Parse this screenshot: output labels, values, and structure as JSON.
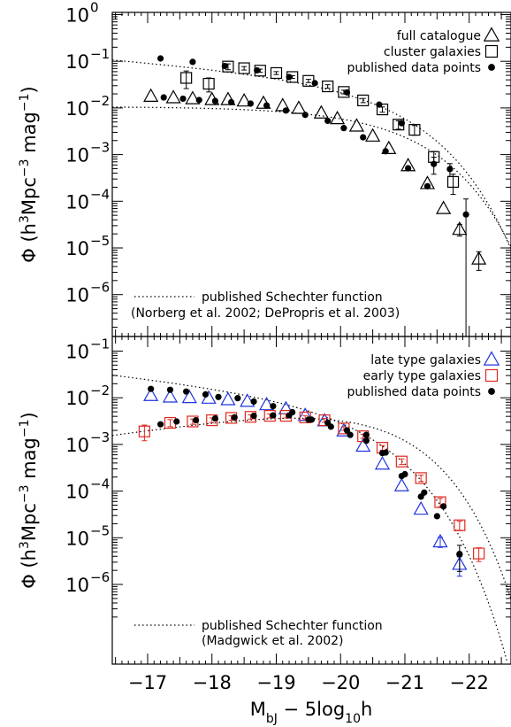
{
  "chart_data": [
    {
      "type": "scatter",
      "panel": "top",
      "xlabel": "M_bJ − 5log10h",
      "ylabel": "Φ (h³Mpc⁻³ mag⁻¹)",
      "xlim": [
        -16.45,
        -22.65
      ],
      "ylim_log10": [
        -7.0,
        0.0
      ],
      "ytick_exponents": [
        0,
        -1,
        -2,
        -3,
        -4,
        -5,
        -6
      ],
      "legend_position": "top-right",
      "legend": [
        {
          "label": "full catalogue",
          "marker": "triangle-open",
          "color": "#000000"
        },
        {
          "label": "cluster galaxies",
          "marker": "square-open",
          "color": "#000000"
        },
        {
          "label": "published data points",
          "marker": "circle-filled",
          "color": "#000000"
        }
      ],
      "note": {
        "line1": "published Schechter function",
        "line2": "(Norberg et al. 2002; DePropris et al. 2003)"
      },
      "series": [
        {
          "name": "full catalogue",
          "marker": "triangle-open",
          "color": "#000000",
          "x": [
            -17.05,
            -17.4,
            -17.7,
            -18.0,
            -18.25,
            -18.5,
            -18.8,
            -19.1,
            -19.35,
            -19.7,
            -19.95,
            -20.25,
            -20.5,
            -20.75,
            -21.05,
            -21.35,
            -21.6,
            -21.85,
            -22.15
          ],
          "y": [
            0.0178,
            0.0166,
            0.0158,
            0.0151,
            0.0151,
            0.0141,
            0.0126,
            0.0112,
            0.0098,
            0.0078,
            0.0059,
            0.0041,
            0.0025,
            0.00135,
            0.00058,
            0.00024,
            7e-05,
            2.5e-05,
            5.8e-06
          ],
          "yerr": [
            0,
            0,
            0,
            0,
            0,
            0,
            0,
            0,
            0,
            0,
            0,
            0,
            0,
            0,
            0,
            0,
            0,
            7e-06,
            2.5e-06
          ]
        },
        {
          "name": "cluster galaxies",
          "marker": "square-open",
          "color": "#000000",
          "x": [
            -17.6,
            -17.95,
            -18.25,
            -18.5,
            -18.75,
            -19.0,
            -19.25,
            -19.5,
            -19.8,
            -20.05,
            -20.35,
            -20.65,
            -20.9,
            -21.15,
            -21.45,
            -21.75
          ],
          "y": [
            0.044,
            0.033,
            0.077,
            0.071,
            0.063,
            0.056,
            0.046,
            0.038,
            0.029,
            0.022,
            0.0145,
            0.0093,
            0.0044,
            0.0034,
            0.00089,
            0.00026
          ],
          "yerr": [
            0.018,
            0.011,
            0.011,
            0.006,
            0.005,
            0.004,
            0.003,
            0.003,
            0.0025,
            0.002,
            0.0015,
            0.0012,
            0.0009,
            0.0008,
            0.00028,
            0.00012
          ]
        },
        {
          "name": "published data points",
          "marker": "circle-filled",
          "color": "#000000",
          "x": [
            -17.2,
            -17.7,
            -18.2,
            -18.7,
            -19.2,
            -19.6,
            -20.1,
            -20.6,
            -20.95,
            -21.45,
            -21.7,
            -21.95,
            -21.35,
            -21.05,
            -20.7,
            -20.35,
            -20.05,
            -19.8,
            -19.45,
            -19.15,
            -18.85,
            -18.6,
            -18.3,
            -18.05,
            -17.8,
            -17.55,
            -17.25
          ],
          "y": [
            0.115,
            0.097,
            0.079,
            0.064,
            0.046,
            0.034,
            0.0215,
            0.0118,
            0.0047,
            0.00063,
            0.00049,
            5.2e-05,
            0.00021,
            0.00051,
            0.00118,
            0.00235,
            0.0037,
            0.0053,
            0.0071,
            0.0088,
            0.0113,
            0.0124,
            0.0133,
            0.0141,
            0.0148,
            0.0158,
            0.0168
          ],
          "yerr": [
            0,
            0,
            0,
            0,
            0,
            0,
            0,
            0,
            0,
            0.00025,
            0.00015,
            6e-05,
            0,
            0,
            0,
            0,
            0,
            0,
            0,
            0,
            0,
            0,
            0,
            0,
            0,
            0,
            0
          ]
        }
      ],
      "schechter": [
        {
          "phi_star": 0.0395,
          "m_star": -20.44,
          "alpha": -1.3
        },
        {
          "phi_star": 0.0116,
          "m_star": -20.55,
          "alpha": -1.0
        }
      ]
    },
    {
      "type": "scatter",
      "panel": "bottom",
      "xlabel": "M_bJ − 5log10h",
      "ylabel": "Φ (h³Mpc⁻³ mag⁻¹)",
      "xlim": [
        -16.45,
        -22.65
      ],
      "ylim_log10": [
        -7.0,
        -0.8
      ],
      "ytick_exponents": [
        -1,
        -2,
        -3,
        -4,
        -5,
        -6
      ],
      "xticks": [
        -17,
        -18,
        -19,
        -20,
        -21,
        -22
      ],
      "legend_position": "top-right",
      "legend": [
        {
          "label": "late type galaxies",
          "marker": "triangle-open",
          "color": "#1f33e0"
        },
        {
          "label": "early type galaxies",
          "marker": "square-open",
          "color": "#e0281f"
        },
        {
          "label": "published data points",
          "marker": "circle-filled",
          "color": "#000000"
        }
      ],
      "note": {
        "line1": "published Schechter function",
        "line2": "(Madgwick et al. 2002)"
      },
      "series": [
        {
          "name": "late type galaxies",
          "marker": "triangle-open",
          "color": "#1f33e0",
          "x": [
            -17.05,
            -17.35,
            -17.65,
            -17.95,
            -18.25,
            -18.55,
            -18.85,
            -19.15,
            -19.45,
            -19.75,
            -20.05,
            -20.35,
            -20.65,
            -20.95,
            -21.25,
            -21.55,
            -21.85
          ],
          "y": [
            0.0112,
            0.0104,
            0.0101,
            0.0098,
            0.0091,
            0.0084,
            0.0071,
            0.0058,
            0.0042,
            0.0032,
            0.00195,
            0.00092,
            0.00038,
            0.00013,
            4.1e-05,
            8.2e-06,
            2.7e-06
          ],
          "yerr": [
            0,
            0,
            0,
            0,
            0,
            0,
            0,
            0,
            0,
            0,
            0,
            0,
            0,
            0,
            0,
            2e-06,
            1.2e-06
          ]
        },
        {
          "name": "early type galaxies",
          "marker": "square-open",
          "color": "#e0281f",
          "x": [
            -16.95,
            -17.35,
            -17.7,
            -18.0,
            -18.3,
            -18.6,
            -18.9,
            -19.15,
            -19.45,
            -19.75,
            -20.05,
            -20.35,
            -20.65,
            -20.95,
            -21.25,
            -21.55,
            -21.85,
            -22.15
          ],
          "y": [
            0.0019,
            0.0029,
            0.0031,
            0.0033,
            0.0037,
            0.0039,
            0.0041,
            0.0041,
            0.0038,
            0.0033,
            0.0022,
            0.0015,
            0.00085,
            0.00043,
            0.00019,
            5.8e-05,
            1.85e-05,
            4.6e-06
          ],
          "yerr": [
            0.0007,
            0.0005,
            0.0004,
            0.0004,
            0.0004,
            0.0004,
            0.0004,
            0.0004,
            0.0003,
            0.0003,
            0.0002,
            0.00015,
            0.0001,
            6e-05,
            3e-05,
            1.2e-05,
            4e-06,
            1.5e-06
          ]
        },
        {
          "name": "published data points",
          "marker": "circle-filled",
          "color": "#000000",
          "x": [
            -17.05,
            -17.35,
            -17.6,
            -17.9,
            -18.1,
            -18.4,
            -18.65,
            -18.95,
            -19.25,
            -19.55,
            -19.85,
            -20.15,
            -20.4,
            -20.65,
            -20.95,
            -21.25,
            -21.5,
            -21.85,
            -17.2,
            -17.45,
            -17.75,
            -18.05,
            -18.35,
            -18.65,
            -18.95,
            -19.2,
            -19.5,
            -19.8,
            -20.1,
            -20.4,
            -20.7,
            -21.0,
            -21.3,
            -21.6,
            -21.85
          ],
          "y": [
            0.0155,
            0.0148,
            0.0136,
            0.0118,
            0.0104,
            0.0098,
            0.0083,
            0.0066,
            0.0049,
            0.0034,
            0.0024,
            0.0016,
            0.0012,
            0.00065,
            0.00021,
            7.6e-05,
            2.9e-05,
            4.4e-06,
            0.0027,
            0.0031,
            0.0033,
            0.0036,
            0.0038,
            0.0041,
            0.0042,
            0.0042,
            0.0034,
            0.0029,
            0.002,
            0.0016,
            0.00067,
            0.00023,
            9.3e-05,
            4.7e-05,
            4.5e-06
          ],
          "yerr": [
            0,
            0,
            0,
            0,
            0,
            0,
            0,
            0,
            0,
            0,
            0,
            0,
            0,
            0,
            0,
            0,
            0,
            2.5e-06,
            0,
            0,
            0,
            0,
            0,
            0,
            0,
            0,
            0,
            0,
            0,
            0,
            0,
            0,
            0,
            0,
            0
          ]
        }
      ],
      "schechter": [
        {
          "phi_star": 0.0097,
          "m_star": -19.9,
          "alpha": -1.4
        },
        {
          "phi_star": 0.0092,
          "m_star": -20.05,
          "alpha": -0.5
        }
      ]
    }
  ],
  "labels": {
    "ylabel_top": "Φ  (h³Mpc⁻³ mag⁻¹)",
    "ylabel_bottom": "Φ  (h³Mpc⁻³ mag⁻¹)",
    "xlabel": "M_bJ − 5log10h"
  }
}
